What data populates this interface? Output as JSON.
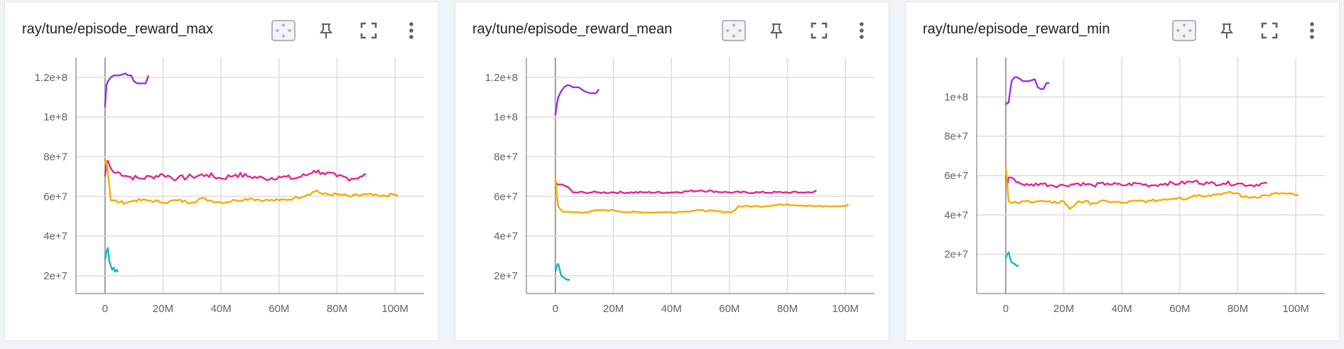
{
  "cards": [
    {
      "title": "ray/tune/episode_reward_max",
      "tools": [
        "fit-domain-icon",
        "pin-icon",
        "fullscreen-icon",
        "more-vert-icon"
      ],
      "chart_data": {
        "type": "line",
        "xlim": [
          -10000000,
          110000000
        ],
        "ylim": [
          11000000,
          130000000
        ],
        "xticks": [
          {
            "v": 0,
            "label": "0"
          },
          {
            "v": 20000000,
            "label": "20M"
          },
          {
            "v": 40000000,
            "label": "40M"
          },
          {
            "v": 60000000,
            "label": "60M"
          },
          {
            "v": 80000000,
            "label": "80M"
          },
          {
            "v": 100000000,
            "label": "100M"
          }
        ],
        "yticks": [
          {
            "v": 20000000,
            "label": "2e+7"
          },
          {
            "v": 40000000,
            "label": "4e+7"
          },
          {
            "v": 60000000,
            "label": "6e+7"
          },
          {
            "v": 80000000,
            "label": "8e+7"
          },
          {
            "v": 100000000,
            "label": "1e+8"
          },
          {
            "v": 120000000,
            "label": "1.2e+8"
          }
        ],
        "grid": true,
        "series": [
          {
            "color": "#9334e6",
            "x": [
              0,
              0.3,
              0.5,
              1,
              2,
              3,
              5,
              7,
              8,
              9,
              10,
              11,
              12,
              13,
              14,
              15
            ],
            "y": [
              105,
              112,
              116,
              118,
              120,
              121,
              121,
              122,
              121,
              121,
              118,
              117,
              117,
              117,
              117,
              121
            ]
          },
          {
            "color": "#e52592",
            "x": [
              0,
              0.5,
              1,
              2,
              3,
              5,
              8,
              12,
              16,
              20,
              25,
              30,
              35,
              40,
              45,
              50,
              55,
              60,
              65,
              70,
              72,
              75,
              80,
              85,
              88,
              90
            ],
            "y": [
              70,
              76,
              78,
              74,
              72,
              72,
              70,
              69,
              70,
              71,
              69,
              70,
              71,
              69,
              71,
              70,
              69,
              70,
              69,
              71,
              73,
              72,
              70,
              69,
              70,
              71
            ],
            "noise": 1.4
          },
          {
            "color": "#f9ab00",
            "x": [
              0,
              0.5,
              1,
              2,
              3,
              5,
              8,
              10,
              15,
              20,
              25,
              30,
              33,
              36,
              40,
              45,
              50,
              55,
              60,
              65,
              70,
              73,
              75,
              80,
              85,
              90,
              95,
              100,
              101
            ],
            "y": [
              76,
              78,
              72,
              58,
              58,
              57,
              57,
              58,
              58,
              57,
              58,
              57,
              59,
              58,
              57,
              58,
              59,
              58,
              58,
              59,
              61,
              63,
              61,
              61,
              60,
              61,
              60,
              61,
              60
            ],
            "noise": 0.8
          },
          {
            "color": "#12b5cb",
            "x": [
              0,
              0.5,
              1,
              1.5,
              2,
              2.5,
              3,
              3.5,
              4,
              4.5
            ],
            "y": [
              28,
              32,
              34,
              27,
              25,
              23,
              24,
              22,
              23,
              22
            ]
          }
        ]
      }
    },
    {
      "title": "ray/tune/episode_reward_mean",
      "tools": [
        "fit-domain-icon",
        "pin-icon",
        "fullscreen-icon",
        "more-vert-icon"
      ],
      "chart_data": {
        "type": "line",
        "xlim": [
          -10000000,
          110000000
        ],
        "ylim": [
          11000000,
          130000000
        ],
        "xticks": [
          {
            "v": 0,
            "label": "0"
          },
          {
            "v": 20000000,
            "label": "20M"
          },
          {
            "v": 40000000,
            "label": "40M"
          },
          {
            "v": 60000000,
            "label": "60M"
          },
          {
            "v": 80000000,
            "label": "80M"
          },
          {
            "v": 100000000,
            "label": "100M"
          }
        ],
        "yticks": [
          {
            "v": 20000000,
            "label": "2e+7"
          },
          {
            "v": 40000000,
            "label": "4e+7"
          },
          {
            "v": 60000000,
            "label": "6e+7"
          },
          {
            "v": 80000000,
            "label": "8e+7"
          },
          {
            "v": 100000000,
            "label": "1e+8"
          },
          {
            "v": 120000000,
            "label": "1.2e+8"
          }
        ],
        "grid": true,
        "series": [
          {
            "color": "#9334e6",
            "x": [
              0,
              0.3,
              0.6,
              1,
              2,
              3,
              4,
              5,
              6,
              8,
              10,
              12,
              14,
              15
            ],
            "y": [
              101,
              104,
              107,
              110,
              113,
              115,
              116,
              116,
              115,
              115,
              113,
              112,
              112,
              114
            ]
          },
          {
            "color": "#e52592",
            "x": [
              0,
              0.5,
              1,
              2,
              4,
              6,
              8,
              10,
              15,
              20,
              30,
              40,
              50,
              60,
              70,
              80,
              85,
              88,
              90
            ],
            "y": [
              68,
              66,
              66,
              66,
              65,
              62,
              62,
              62,
              62,
              62,
              62,
              62,
              63,
              62,
              62,
              62,
              62,
              62,
              63
            ],
            "noise": 0.5
          },
          {
            "color": "#f9ab00",
            "x": [
              0,
              0.5,
              1,
              2,
              3,
              5,
              8,
              10,
              15,
              20,
              25,
              30,
              40,
              50,
              60,
              62,
              63,
              65,
              70,
              80,
              90,
              100,
              101
            ],
            "y": [
              70,
              60,
              55,
              53,
              52,
              52,
              52,
              52,
              53,
              53,
              52,
              52,
              52,
              53,
              52,
              53,
              55,
              55,
              55,
              56,
              55,
              55,
              56
            ],
            "noise": 0.4
          },
          {
            "color": "#12b5cb",
            "x": [
              0,
              0.5,
              1,
              1.5,
              2,
              3,
              4,
              5
            ],
            "y": [
              22,
              25,
              26,
              23,
              20,
              19,
              18,
              18
            ]
          }
        ]
      }
    },
    {
      "title": "ray/tune/episode_reward_min",
      "tools": [
        "fit-domain-icon",
        "pin-icon",
        "fullscreen-icon",
        "more-vert-icon"
      ],
      "chart_data": {
        "type": "line",
        "xlim": [
          -10000000,
          110000000
        ],
        "ylim": [
          0,
          120000000
        ],
        "xticks": [
          {
            "v": 0,
            "label": "0"
          },
          {
            "v": 20000000,
            "label": "20M"
          },
          {
            "v": 40000000,
            "label": "40M"
          },
          {
            "v": 60000000,
            "label": "60M"
          },
          {
            "v": 80000000,
            "label": "80M"
          },
          {
            "v": 100000000,
            "label": "100M"
          }
        ],
        "yticks": [
          {
            "v": 20000000,
            "label": "2e+7"
          },
          {
            "v": 40000000,
            "label": "4e+7"
          },
          {
            "v": 60000000,
            "label": "6e+7"
          },
          {
            "v": 80000000,
            "label": "8e+7"
          },
          {
            "v": 100000000,
            "label": "1e+8"
          }
        ],
        "grid": true,
        "series": [
          {
            "color": "#9334e6",
            "x": [
              0,
              0.5,
              1,
              1.5,
              2,
              3,
              4,
              6,
              8,
              10,
              11,
              12,
              13,
              14,
              15
            ],
            "y": [
              96,
              97,
              97,
              103,
              108,
              110,
              110,
              108,
              108,
              109,
              105,
              104,
              104,
              107,
              107
            ]
          },
          {
            "color": "#e52592",
            "x": [
              0,
              0.5,
              1,
              2,
              3,
              5,
              8,
              12,
              16,
              20,
              25,
              30,
              35,
              40,
              45,
              50,
              55,
              60,
              65,
              70,
              75,
              80,
              85,
              88,
              90
            ],
            "y": [
              60,
              55,
              59,
              59,
              58,
              56,
              55,
              56,
              55,
              55,
              56,
              55,
              56,
              55,
              56,
              55,
              56,
              56,
              57,
              56,
              56,
              56,
              55,
              56,
              56
            ],
            "noise": 1.0
          },
          {
            "color": "#f9ab00",
            "x": [
              0,
              0.5,
              1,
              2,
              4,
              8,
              12,
              16,
              20,
              22,
              23,
              25,
              30,
              35,
              40,
              45,
              50,
              55,
              60,
              62,
              65,
              70,
              75,
              80,
              82,
              85,
              90,
              95,
              100,
              101
            ],
            "y": [
              65,
              55,
              47,
              46,
              46,
              47,
              47,
              46,
              47,
              43,
              44,
              47,
              46,
              47,
              46,
              47,
              47,
              48,
              49,
              48,
              50,
              50,
              51,
              51,
              49,
              49,
              50,
              51,
              50,
              50
            ],
            "noise": 0.8
          },
          {
            "color": "#12b5cb",
            "x": [
              0,
              0.5,
              1,
              1.5,
              2,
              3,
              4,
              4.5
            ],
            "y": [
              18,
              20,
              21,
              18,
              16,
              15,
              14,
              14
            ]
          }
        ]
      }
    }
  ]
}
